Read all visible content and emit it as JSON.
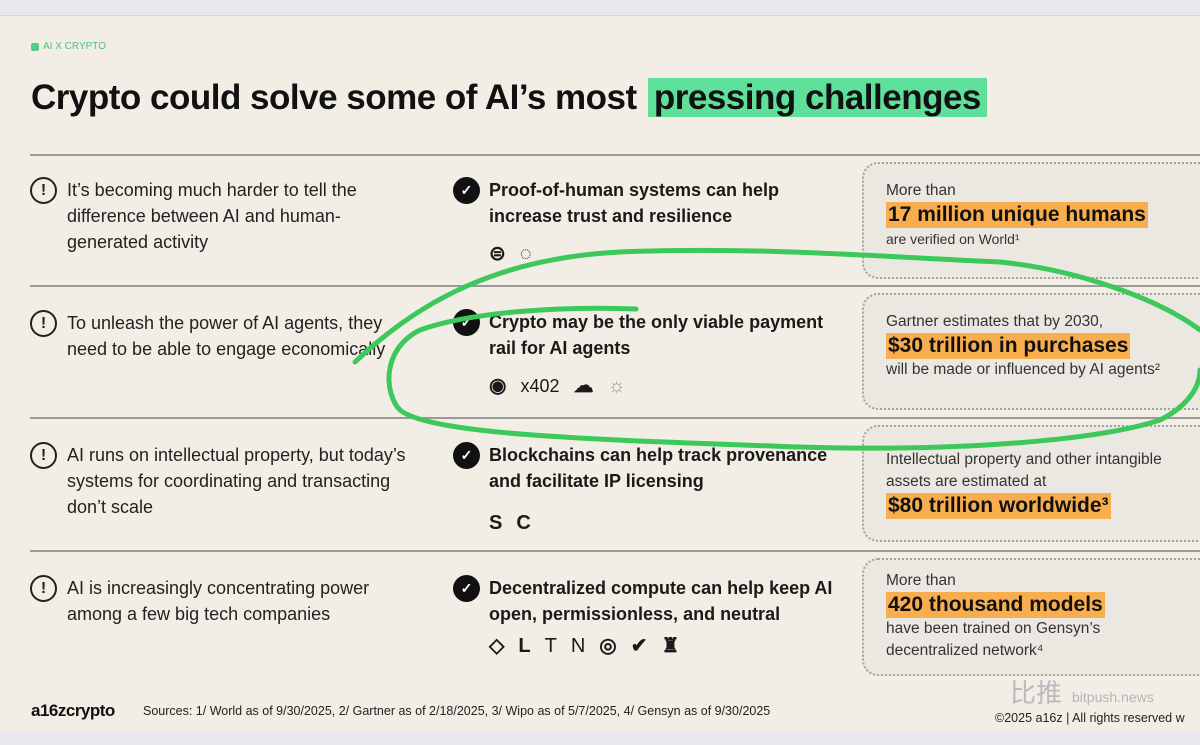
{
  "tag": "AI X CRYPTO",
  "title": {
    "prefix": "Crypto could solve some of AI’s most",
    "highlight": "pressing challenges"
  },
  "rows": [
    {
      "problem": "It’s becoming much harder to tell the difference between AI and human-generated activity",
      "solution": "Proof-of-human systems can help increase trust and resilience",
      "logos": [
        "world-logo-icon",
        "dotted-circle-logo-icon"
      ],
      "stat": {
        "pre": "More than",
        "big": "17 million unique humans",
        "post": "are verified on World¹"
      }
    },
    {
      "problem": "To unleash the power of AI agents, they need to be able to engage economically",
      "solution": "Crypto may be the only viable payment rail for AI agents",
      "logos": [
        "coinbase-logo-icon",
        "cloudflare-logo-icon",
        "sun-logo-icon"
      ],
      "logo_text": "x402",
      "stat": {
        "pre": "Gartner estimates that by 2030,",
        "big": "$30 trillion in purchases",
        "post": "will be made or influenced by AI agents²"
      }
    },
    {
      "problem": "AI runs on intellectual property, but today’s systems for coordinating and transacting don’t scale",
      "solution": "Blockchains can help track provenance and facilitate IP licensing",
      "logos": [
        "story-logo-icon",
        "camp-logo-icon"
      ],
      "stat": {
        "pre": "Intellectual property and other intangible assets are estimated at",
        "big": "$80 trillion worldwide³",
        "post": ""
      }
    },
    {
      "problem": "AI is increasingly concentrating power among a few big tech companies",
      "solution": "Decentralized compute can help keep AI open, permissionless, and neutral",
      "logos": [
        "diamond-logo-icon",
        "block-logo-icon",
        "t-logo-icon",
        "n-logo-icon",
        "ring-logo-icon",
        "check-badge-logo-icon",
        "figure-logo-icon"
      ],
      "stat": {
        "pre": "More than",
        "big": "420 thousand models",
        "post": "have been trained on Gensyn’s decentralized network⁴"
      }
    }
  ],
  "footer": {
    "logo": "a16zcrypto",
    "sources": "Sources: 1/ World as of 9/30/2025, 2/ Gartner as of 2/18/2025, 3/ Wipo as of 5/7/2025, 4/ Gensyn as of 9/30/2025",
    "copyright": "©2025 a16z | All rights reserved w"
  },
  "watermark": {
    "cn": "比推",
    "en": "bitpush.news"
  },
  "colors": {
    "slide_bg": "#f2eee6",
    "green_highlight": "#5fe09a",
    "orange_highlight": "#f8ae4f",
    "annotation": "#3cc85a"
  }
}
